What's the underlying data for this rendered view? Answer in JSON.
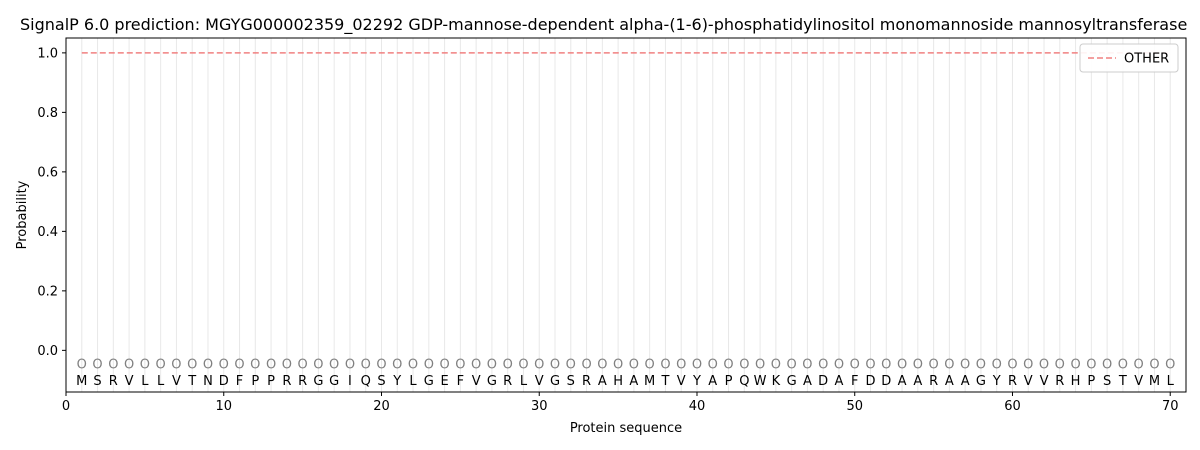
{
  "chart_data": {
    "type": "line",
    "title": "SignalP 6.0 prediction: MGYG000002359_02292 GDP-mannose-dependent alpha-(1-6)-phosphatidylinositol monomannoside mannosyltransferase",
    "xlabel": "Protein sequence",
    "ylabel": "Probability",
    "xlim": [
      0,
      71
    ],
    "ylim": [
      -0.14,
      1.05
    ],
    "x_ticks": [
      0,
      10,
      20,
      30,
      40,
      50,
      60,
      70
    ],
    "y_ticks": [
      0.0,
      0.2,
      0.4,
      0.6,
      0.8,
      1.0
    ],
    "grid": "vertical lines at each residue position",
    "legend": {
      "placement": "top-right",
      "entries": [
        "OTHER"
      ]
    },
    "series": [
      {
        "name": "OTHER",
        "color": "#f08080",
        "style": "dashed",
        "x_range": [
          1,
          70
        ],
        "values_constant": 1.0
      }
    ],
    "sequence": [
      "M",
      "S",
      "R",
      "V",
      "L",
      "L",
      "V",
      "T",
      "N",
      "D",
      "F",
      "P",
      "P",
      "R",
      "R",
      "G",
      "G",
      "I",
      "Q",
      "S",
      "Y",
      "L",
      "G",
      "E",
      "F",
      "V",
      "G",
      "R",
      "L",
      "V",
      "G",
      "S",
      "R",
      "A",
      "H",
      "A",
      "M",
      "T",
      "V",
      "Y",
      "A",
      "P",
      "Q",
      "W",
      "K",
      "G",
      "A",
      "D",
      "A",
      "F",
      "D",
      "D",
      "A",
      "A",
      "R",
      "A",
      "A",
      "G",
      "Y",
      "R",
      "V",
      "V",
      "R",
      "H",
      "P",
      "S",
      "T",
      "V",
      "M",
      "L"
    ],
    "predicted_labels": [
      "O",
      "O",
      "O",
      "O",
      "O",
      "O",
      "O",
      "O",
      "O",
      "O",
      "O",
      "O",
      "O",
      "O",
      "O",
      "O",
      "O",
      "O",
      "O",
      "O",
      "O",
      "O",
      "O",
      "O",
      "O",
      "O",
      "O",
      "O",
      "O",
      "O",
      "O",
      "O",
      "O",
      "O",
      "O",
      "O",
      "O",
      "O",
      "O",
      "O",
      "O",
      "O",
      "O",
      "O",
      "O",
      "O",
      "O",
      "O",
      "O",
      "O",
      "O",
      "O",
      "O",
      "O",
      "O",
      "O",
      "O",
      "O",
      "O",
      "O",
      "O",
      "O",
      "O",
      "O",
      "O",
      "O",
      "O",
      "O",
      "O",
      "O"
    ]
  }
}
